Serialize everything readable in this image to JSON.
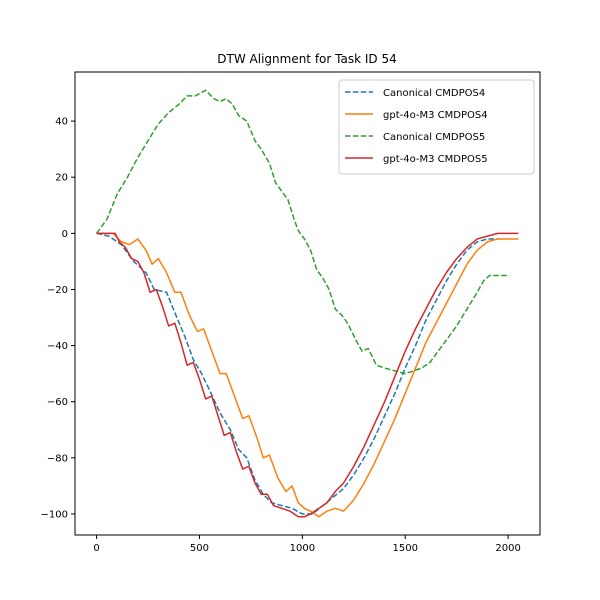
{
  "chart_data": {
    "type": "line",
    "title": "DTW Alignment for Task ID 54",
    "xlabel": "",
    "ylabel": "",
    "xlim": [
      -105,
      2155
    ],
    "ylim": [
      -107.5,
      57.5
    ],
    "xticks": [
      0,
      500,
      1000,
      1500,
      2000
    ],
    "yticks": [
      -100,
      -80,
      -60,
      -40,
      -20,
      0,
      20,
      40
    ],
    "grid": false,
    "legend_position": "top-right",
    "series": [
      {
        "name": "Canonical CMDPOS4",
        "color": "#1f77b4",
        "dash": "dashed",
        "points": [
          [
            0,
            0
          ],
          [
            60,
            -1
          ],
          [
            120,
            -4
          ],
          [
            180,
            -10
          ],
          [
            240,
            -14
          ],
          [
            280,
            -20
          ],
          [
            340,
            -21
          ],
          [
            390,
            -30
          ],
          [
            430,
            -37
          ],
          [
            470,
            -45
          ],
          [
            510,
            -50
          ],
          [
            550,
            -56
          ],
          [
            600,
            -64
          ],
          [
            650,
            -70
          ],
          [
            690,
            -77
          ],
          [
            730,
            -80
          ],
          [
            770,
            -88
          ],
          [
            810,
            -93
          ],
          [
            850,
            -96
          ],
          [
            900,
            -97
          ],
          [
            950,
            -98
          ],
          [
            1000,
            -100
          ],
          [
            1050,
            -100
          ],
          [
            1100,
            -97
          ],
          [
            1150,
            -94
          ],
          [
            1200,
            -91
          ],
          [
            1250,
            -86
          ],
          [
            1300,
            -80
          ],
          [
            1350,
            -73
          ],
          [
            1400,
            -65
          ],
          [
            1450,
            -57
          ],
          [
            1500,
            -48
          ],
          [
            1550,
            -40
          ],
          [
            1600,
            -31
          ],
          [
            1650,
            -24
          ],
          [
            1700,
            -17
          ],
          [
            1750,
            -11
          ],
          [
            1800,
            -6
          ],
          [
            1850,
            -3
          ],
          [
            1900,
            -2
          ],
          [
            1950,
            -2
          ]
        ]
      },
      {
        "name": "gpt-4o-M3 CMDPOS4",
        "color": "#ff7f0e",
        "dash": "solid",
        "points": [
          [
            0,
            0
          ],
          [
            80,
            0
          ],
          [
            120,
            -3
          ],
          [
            160,
            -4
          ],
          [
            200,
            -2
          ],
          [
            240,
            -6
          ],
          [
            270,
            -11
          ],
          [
            300,
            -9
          ],
          [
            340,
            -14
          ],
          [
            380,
            -21
          ],
          [
            410,
            -21
          ],
          [
            450,
            -29
          ],
          [
            490,
            -35
          ],
          [
            520,
            -34
          ],
          [
            560,
            -42
          ],
          [
            600,
            -50
          ],
          [
            630,
            -50
          ],
          [
            670,
            -58
          ],
          [
            710,
            -66
          ],
          [
            740,
            -65
          ],
          [
            780,
            -73
          ],
          [
            810,
            -80
          ],
          [
            840,
            -79
          ],
          [
            880,
            -87
          ],
          [
            920,
            -92
          ],
          [
            950,
            -90
          ],
          [
            980,
            -96
          ],
          [
            1010,
            -98
          ],
          [
            1040,
            -99
          ],
          [
            1080,
            -101
          ],
          [
            1120,
            -99
          ],
          [
            1160,
            -98
          ],
          [
            1200,
            -99
          ],
          [
            1250,
            -95
          ],
          [
            1300,
            -89
          ],
          [
            1350,
            -82
          ],
          [
            1400,
            -74
          ],
          [
            1450,
            -66
          ],
          [
            1500,
            -57
          ],
          [
            1550,
            -48
          ],
          [
            1600,
            -39
          ],
          [
            1650,
            -32
          ],
          [
            1700,
            -25
          ],
          [
            1750,
            -18
          ],
          [
            1800,
            -11
          ],
          [
            1850,
            -6
          ],
          [
            1900,
            -3
          ],
          [
            1950,
            -2
          ],
          [
            2050,
            -2
          ]
        ]
      },
      {
        "name": "Canonical CMDPOS5",
        "color": "#2ca02c",
        "dash": "dashed",
        "points": [
          [
            0,
            0
          ],
          [
            50,
            5
          ],
          [
            100,
            14
          ],
          [
            150,
            20
          ],
          [
            200,
            27
          ],
          [
            250,
            33
          ],
          [
            300,
            39
          ],
          [
            350,
            43
          ],
          [
            400,
            46
          ],
          [
            440,
            49
          ],
          [
            480,
            49
          ],
          [
            530,
            51
          ],
          [
            570,
            48
          ],
          [
            600,
            47
          ],
          [
            630,
            48
          ],
          [
            660,
            46
          ],
          [
            690,
            42
          ],
          [
            730,
            40
          ],
          [
            770,
            33
          ],
          [
            800,
            30
          ],
          [
            840,
            25
          ],
          [
            870,
            18
          ],
          [
            900,
            15
          ],
          [
            930,
            12
          ],
          [
            960,
            5
          ],
          [
            980,
            1
          ],
          [
            1010,
            -2
          ],
          [
            1040,
            -6
          ],
          [
            1070,
            -13
          ],
          [
            1100,
            -16
          ],
          [
            1130,
            -20
          ],
          [
            1160,
            -27
          ],
          [
            1190,
            -29
          ],
          [
            1220,
            -32
          ],
          [
            1260,
            -38
          ],
          [
            1290,
            -42
          ],
          [
            1320,
            -41
          ],
          [
            1360,
            -47
          ],
          [
            1400,
            -48
          ],
          [
            1450,
            -49
          ],
          [
            1500,
            -50
          ],
          [
            1540,
            -49
          ],
          [
            1580,
            -48
          ],
          [
            1620,
            -46
          ],
          [
            1660,
            -42
          ],
          [
            1700,
            -38
          ],
          [
            1750,
            -33
          ],
          [
            1800,
            -27
          ],
          [
            1850,
            -21
          ],
          [
            1880,
            -17
          ],
          [
            1910,
            -15
          ],
          [
            1950,
            -15
          ],
          [
            2000,
            -15
          ]
        ]
      },
      {
        "name": "gpt-4o-M3 CMDPOS5",
        "color": "#d62728",
        "dash": "solid",
        "points": [
          [
            0,
            0
          ],
          [
            90,
            0
          ],
          [
            110,
            -3
          ],
          [
            140,
            -5
          ],
          [
            170,
            -9
          ],
          [
            200,
            -10
          ],
          [
            230,
            -14
          ],
          [
            260,
            -21
          ],
          [
            290,
            -20
          ],
          [
            320,
            -26
          ],
          [
            350,
            -33
          ],
          [
            380,
            -32
          ],
          [
            410,
            -39
          ],
          [
            440,
            -47
          ],
          [
            470,
            -46
          ],
          [
            500,
            -52
          ],
          [
            530,
            -59
          ],
          [
            560,
            -58
          ],
          [
            590,
            -65
          ],
          [
            620,
            -72
          ],
          [
            650,
            -71
          ],
          [
            680,
            -78
          ],
          [
            710,
            -84
          ],
          [
            740,
            -83
          ],
          [
            770,
            -89
          ],
          [
            800,
            -93
          ],
          [
            830,
            -93
          ],
          [
            860,
            -97
          ],
          [
            900,
            -98
          ],
          [
            940,
            -99
          ],
          [
            980,
            -101
          ],
          [
            1010,
            -101
          ],
          [
            1040,
            -100
          ],
          [
            1080,
            -98
          ],
          [
            1120,
            -96
          ],
          [
            1160,
            -92
          ],
          [
            1200,
            -89
          ],
          [
            1250,
            -83
          ],
          [
            1300,
            -76
          ],
          [
            1350,
            -68
          ],
          [
            1400,
            -60
          ],
          [
            1450,
            -51
          ],
          [
            1500,
            -42
          ],
          [
            1550,
            -34
          ],
          [
            1600,
            -27
          ],
          [
            1650,
            -20
          ],
          [
            1700,
            -14
          ],
          [
            1750,
            -9
          ],
          [
            1800,
            -5
          ],
          [
            1850,
            -2
          ],
          [
            1900,
            -1
          ],
          [
            1950,
            0
          ],
          [
            2050,
            0
          ]
        ]
      }
    ]
  }
}
